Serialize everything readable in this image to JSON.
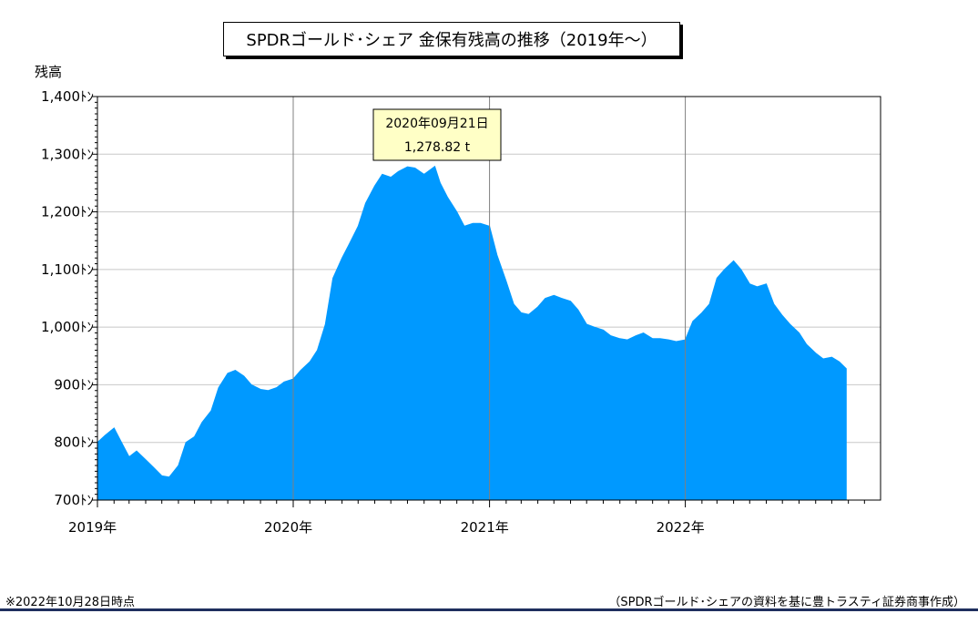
{
  "title": "SPDRゴールド･シェア 金保有残高の推移（2019年～）",
  "note": "※2022年10月28日時点",
  "source": "（SPDRゴールド･シェアの資料を基に豊トラスティ証券商事作成）",
  "colors": {
    "fill": "#0099ff",
    "grid": "#c8c8c8",
    "year_line": "#808080",
    "tooltip_bg": "#ffffc6",
    "rule": "#1f2f5e"
  },
  "chart_data": {
    "type": "area",
    "ylabel": "残高",
    "ylim": [
      700,
      1400
    ],
    "y_ticks": [
      {
        "value": 1400,
        "label": "1,400ﾄﾝ"
      },
      {
        "value": 1300,
        "label": "1,300ﾄﾝ"
      },
      {
        "value": 1200,
        "label": "1,200ﾄﾝ"
      },
      {
        "value": 1100,
        "label": "1,100ﾄﾝ"
      },
      {
        "value": 1000,
        "label": "1,000ﾄﾝ"
      },
      {
        "value": 900,
        "label": "900ﾄﾝ"
      },
      {
        "value": 800,
        "label": "800ﾄﾝ"
      },
      {
        "value": 700,
        "label": "700ﾄﾝ"
      }
    ],
    "xlim": [
      "2019-01-01",
      "2022-12-31"
    ],
    "x_ticks": [
      {
        "date": "2019-01-01",
        "label": "2019年"
      },
      {
        "date": "2020-01-01",
        "label": "2020年"
      },
      {
        "date": "2021-01-01",
        "label": "2021年"
      },
      {
        "date": "2022-01-01",
        "label": "2022年"
      }
    ],
    "grid": true,
    "annotation": {
      "date": "2020-09-21",
      "value": 1278.82,
      "date_label": "2020年09月21日",
      "value_label": "1,278.82 t"
    },
    "series": [
      {
        "x": [
          "2019-01-01",
          "2019-01-15",
          "2019-02-01",
          "2019-02-15",
          "2019-03-01",
          "2019-03-15",
          "2019-04-01",
          "2019-04-15",
          "2019-05-01",
          "2019-05-15",
          "2019-06-01",
          "2019-06-15",
          "2019-07-01",
          "2019-07-15",
          "2019-08-01",
          "2019-08-15",
          "2019-09-01",
          "2019-09-15",
          "2019-10-01",
          "2019-10-15",
          "2019-11-01",
          "2019-11-15",
          "2019-12-01",
          "2019-12-15",
          "2020-01-01",
          "2020-01-15",
          "2020-02-01",
          "2020-02-15",
          "2020-03-01",
          "2020-03-15",
          "2020-04-01",
          "2020-04-15",
          "2020-05-01",
          "2020-05-15",
          "2020-06-01",
          "2020-06-15",
          "2020-07-01",
          "2020-07-15",
          "2020-08-01",
          "2020-08-15",
          "2020-09-01",
          "2020-09-21",
          "2020-10-01",
          "2020-10-15",
          "2020-11-01",
          "2020-11-15",
          "2020-12-01",
          "2020-12-15",
          "2021-01-01",
          "2021-01-15",
          "2021-02-01",
          "2021-02-15",
          "2021-03-01",
          "2021-03-15",
          "2021-04-01",
          "2021-04-15",
          "2021-05-01",
          "2021-05-15",
          "2021-06-01",
          "2021-06-15",
          "2021-07-01",
          "2021-07-15",
          "2021-08-01",
          "2021-08-15",
          "2021-09-01",
          "2021-09-15",
          "2021-10-01",
          "2021-10-15",
          "2021-11-01",
          "2021-11-15",
          "2021-12-01",
          "2021-12-15",
          "2022-01-01",
          "2022-01-15",
          "2022-02-01",
          "2022-02-15",
          "2022-03-01",
          "2022-03-15",
          "2022-04-01",
          "2022-04-15",
          "2022-05-01",
          "2022-05-15",
          "2022-06-01",
          "2022-06-15",
          "2022-07-01",
          "2022-07-15",
          "2022-08-01",
          "2022-08-15",
          "2022-09-01",
          "2022-09-15",
          "2022-10-01",
          "2022-10-15",
          "2022-10-28"
        ],
        "values": [
          800,
          812,
          825,
          800,
          775,
          785,
          770,
          757,
          742,
          740,
          760,
          800,
          810,
          835,
          855,
          895,
          920,
          925,
          915,
          900,
          892,
          890,
          895,
          905,
          910,
          925,
          940,
          960,
          1005,
          1085,
          1120,
          1145,
          1175,
          1215,
          1245,
          1265,
          1260,
          1270,
          1278,
          1276,
          1265,
          1278.82,
          1250,
          1225,
          1200,
          1175,
          1180,
          1180,
          1175,
          1125,
          1080,
          1040,
          1025,
          1022,
          1035,
          1050,
          1055,
          1050,
          1045,
          1030,
          1005,
          1000,
          995,
          985,
          980,
          978,
          985,
          990,
          980,
          980,
          978,
          975,
          978,
          1010,
          1025,
          1040,
          1085,
          1100,
          1115,
          1100,
          1075,
          1070,
          1075,
          1040,
          1020,
          1005,
          990,
          970,
          955,
          945,
          948,
          940,
          928
        ]
      }
    ]
  }
}
